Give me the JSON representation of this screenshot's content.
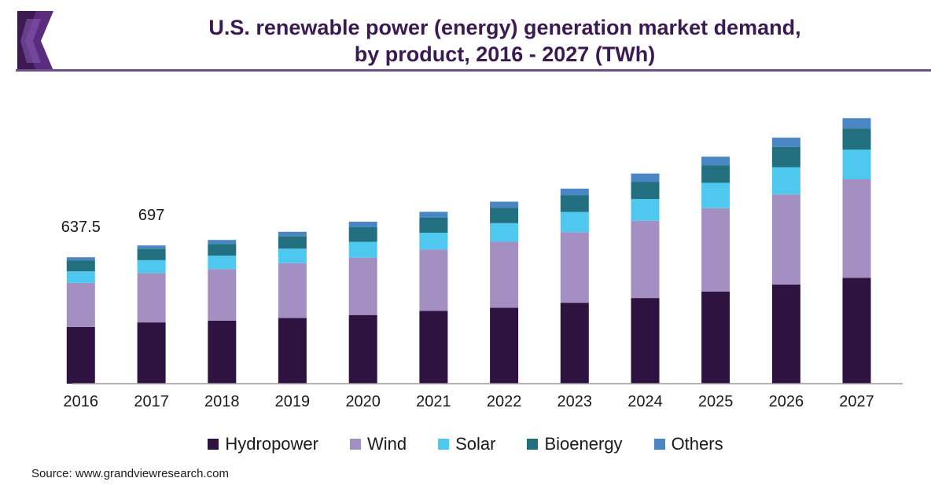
{
  "header": {
    "title_line1": "U.S. renewable power (energy) generation market demand,",
    "title_line2": "by product, 2016 - 2027 (TWh)",
    "logo_icon": "grand-view-research-logo-icon",
    "colors": {
      "title": "#3b1a52",
      "rule": "#6e4f8e"
    }
  },
  "chart_data": {
    "type": "bar",
    "stacked": true,
    "title": "U.S. renewable power (energy) generation market demand, by product, 2016 - 2027 (TWh)",
    "xlabel": "",
    "ylabel": "",
    "ylim": [
      0,
      1380
    ],
    "grid": false,
    "legend_position": "bottom",
    "categories": [
      "2016",
      "2017",
      "2018",
      "2019",
      "2020",
      "2021",
      "2022",
      "2023",
      "2024",
      "2025",
      "2026",
      "2027"
    ],
    "series": [
      {
        "name": "Hydropower",
        "color": "#2e1240",
        "values": [
          286,
          309,
          318,
          331,
          346,
          367,
          383,
          408,
          432,
          464,
          500,
          534
        ]
      },
      {
        "name": "Wind",
        "color": "#a48fc3",
        "values": [
          222,
          249,
          259,
          277,
          290,
          310,
          333,
          356,
          389,
          421,
          455,
          497
        ]
      },
      {
        "name": "Solar",
        "color": "#4ec8ee",
        "values": [
          58,
          65,
          68,
          73,
          79,
          84,
          94,
          102,
          110,
          128,
          137,
          149
        ]
      },
      {
        "name": "Bioenergy",
        "color": "#22707f",
        "values": [
          56,
          58,
          60,
          63,
          74,
          76,
          78,
          84,
          86,
          89,
          103,
          108
        ]
      },
      {
        "name": "Others",
        "color": "#4a86c4",
        "values": [
          15.5,
          16,
          20,
          22,
          28,
          30,
          30,
          34,
          43,
          43,
          46,
          51
        ]
      }
    ],
    "data_labels": [
      {
        "category": "2016",
        "text": "637.5"
      },
      {
        "category": "2017",
        "text": "697"
      }
    ]
  },
  "source": "Source: www.grandviewresearch.com"
}
